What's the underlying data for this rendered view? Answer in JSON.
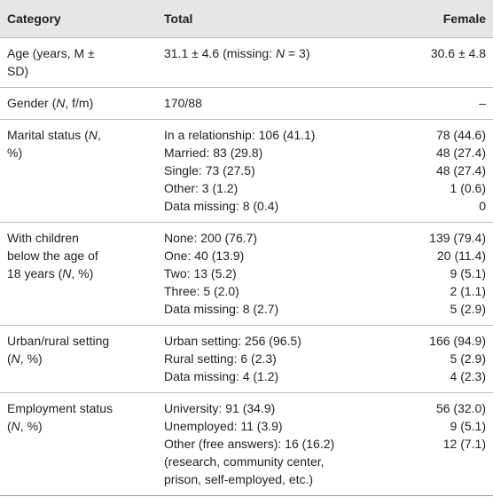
{
  "table": {
    "header": [
      "Category",
      "Total",
      "Female"
    ],
    "rows": [
      {
        "category": [
          "Age (years, M ± SD)"
        ],
        "total": [
          "31.1 ± 4.6 (missing: ",
          {
            "italic": "N"
          },
          " = 3)"
        ],
        "female": [
          "30.6 ± 4.8"
        ]
      },
      {
        "category": [
          "Gender (",
          {
            "italic": "N"
          },
          ", f/m)"
        ],
        "total": [
          "170/88"
        ],
        "female": [
          "–"
        ]
      },
      {
        "category": [
          "Marital status (",
          {
            "italic": "N"
          },
          ", %)"
        ],
        "total": [
          "In a relationship: 106 (41.1)",
          "Married: 83 (29.8)",
          "Single: 73 (27.5)",
          "Other: 3 (1.2)",
          "Data missing: 8 (0.4)"
        ],
        "female": [
          "78 (44.6)",
          "48 (27.4)",
          "48 (27.4)",
          "1 (0.6)",
          "0"
        ]
      },
      {
        "category": [
          "With children below the age of 18 years (",
          {
            "italic": "N"
          },
          ", %)"
        ],
        "total": [
          "None: 200 (76.7)",
          "One: 40 (13.9)",
          "Two: 13 (5.2)",
          "Three: 5 (2.0)",
          "Data missing: 8 (2.7)"
        ],
        "female": [
          "139 (79.4)",
          "20 (11.4)",
          "9 (5.1)",
          "2 (1.1)",
          "5 (2.9)"
        ]
      },
      {
        "category": [
          "Urban/rural setting (",
          {
            "italic": "N"
          },
          ", %)"
        ],
        "total": [
          "Urban setting: 256 (96.5)",
          "Rural setting: 6 (2.3)",
          "Data missing: 4 (1.2)"
        ],
        "female": [
          "166 (94.9)",
          "5 (2.9)",
          "4 (2.3)"
        ]
      },
      {
        "category": [
          "Employment status (",
          {
            "italic": "N"
          },
          ", %)"
        ],
        "total": [
          "University: 91 (34.9)",
          "Unemployed: 11 (3.9)",
          "Other (free answers): 16 (16.2) (research, community center, prison, self-employed, etc.)"
        ],
        "female": [
          "56 (32.0)",
          "9 (5.1)",
          "12 (7.1)"
        ]
      }
    ]
  }
}
